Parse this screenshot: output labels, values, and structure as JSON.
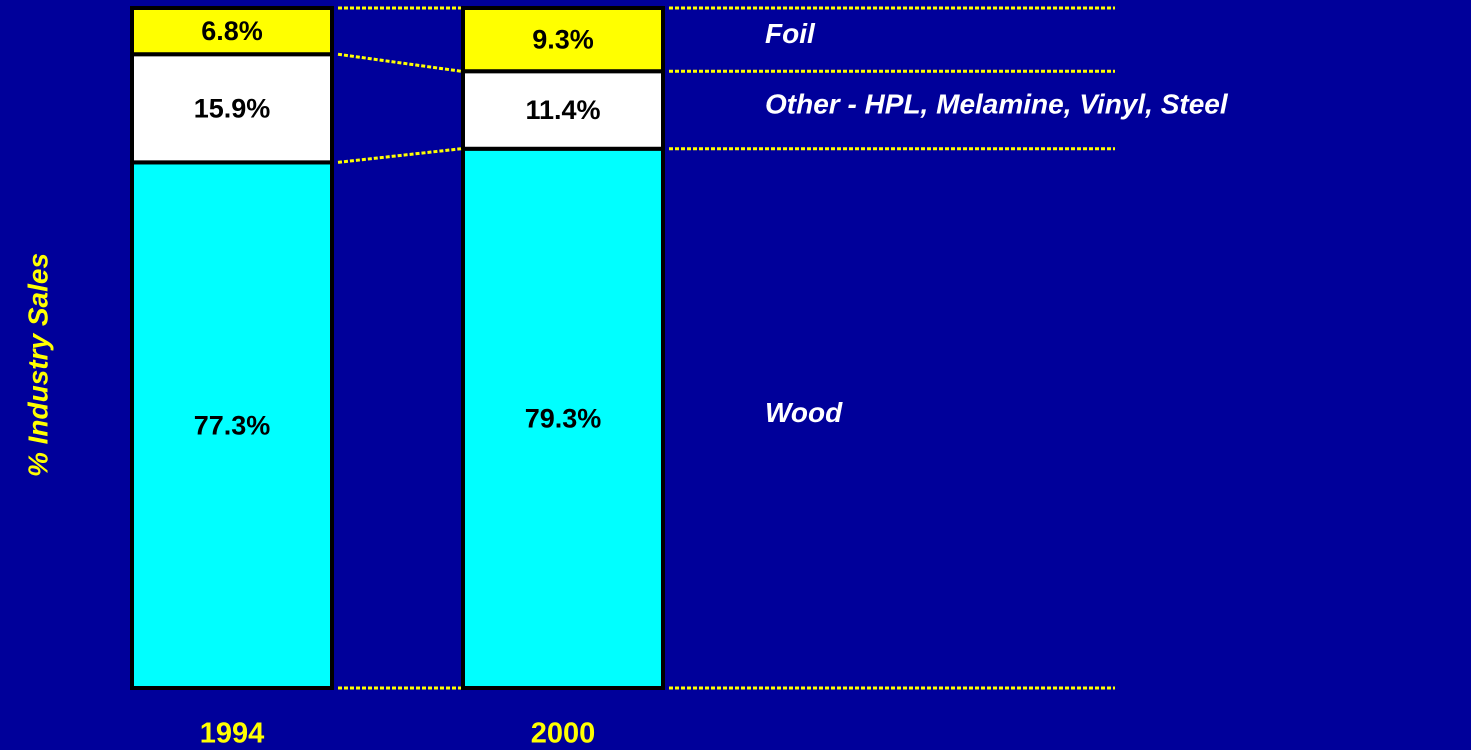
{
  "chart_data": {
    "type": "stacked_bar",
    "ylabel": "% Industry Sales",
    "categories": [
      "1994",
      "2000"
    ],
    "ylim": [
      0,
      100
    ],
    "series": [
      {
        "name": "Wood",
        "color": "#00ffff",
        "values": [
          77.3,
          79.3
        ],
        "value_labels": [
          "77.3%",
          "79.3%"
        ]
      },
      {
        "name": "Other - HPL, Melamine, Vinyl, Steel",
        "color": "#ffffff",
        "values": [
          15.9,
          11.4
        ],
        "value_labels": [
          "15.9%",
          "11.4%"
        ]
      },
      {
        "name": "Foil",
        "color": "#ffff00",
        "values": [
          6.8,
          9.3
        ],
        "value_labels": [
          "6.8%",
          "9.3%"
        ]
      }
    ]
  }
}
